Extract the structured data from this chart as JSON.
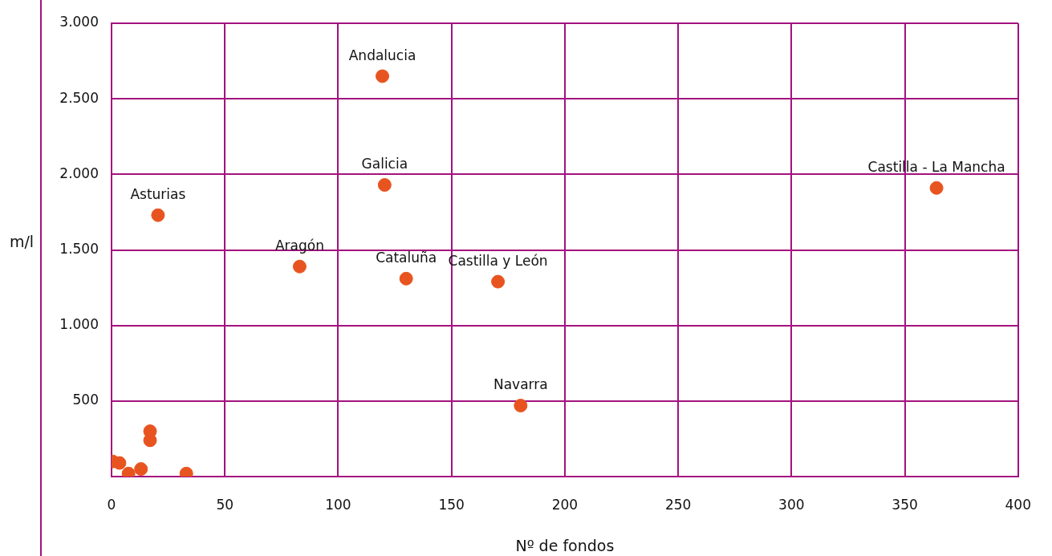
{
  "chart_data": {
    "type": "scatter",
    "xlabel": "Nº de fondos",
    "ylabel": "m/l",
    "x": [
      119.5,
      120.5,
      364,
      20.5,
      83,
      130,
      170.5,
      180.5,
      17,
      17,
      0.5,
      3.5,
      13,
      7.5,
      33
    ],
    "series": [
      {
        "color": "#e8541f",
        "values": [
          2650,
          1930,
          1910,
          1730,
          1390,
          1310,
          1290,
          470,
          300,
          240,
          100,
          90,
          50,
          20,
          20
        ]
      }
    ],
    "annotations": [
      {
        "text": "Andalucia",
        "x": 119.5,
        "y": 2650
      },
      {
        "text": "Galicia",
        "x": 120.5,
        "y": 1930
      },
      {
        "text": "Castilla - La Mancha",
        "x": 364,
        "y": 1910
      },
      {
        "text": "Asturias",
        "x": 20.5,
        "y": 1730
      },
      {
        "text": "Aragón",
        "x": 83,
        "y": 1390
      },
      {
        "text": "Cataluña",
        "x": 130,
        "y": 1310
      },
      {
        "text": "Castilla y León",
        "x": 170.5,
        "y": 1290
      },
      {
        "text": "Navarra",
        "x": 180.5,
        "y": 470
      }
    ],
    "xlim": [
      0,
      400
    ],
    "xticks": [
      0,
      50,
      100,
      150,
      200,
      250,
      300,
      350,
      400
    ],
    "ylim": [
      0,
      3000
    ],
    "yticks": [
      {
        "value": 0,
        "label": null
      },
      {
        "value": 500,
        "label": "500"
      },
      {
        "value": 1000,
        "label": "1.000"
      },
      {
        "value": 1500,
        "label": "1.500"
      },
      {
        "value": 2000,
        "label": "2.000"
      },
      {
        "value": 2500,
        "label": "2.500"
      },
      {
        "value": 3000,
        "label": "3.000"
      }
    ],
    "grid": true,
    "legend": false,
    "marker": "circle"
  }
}
